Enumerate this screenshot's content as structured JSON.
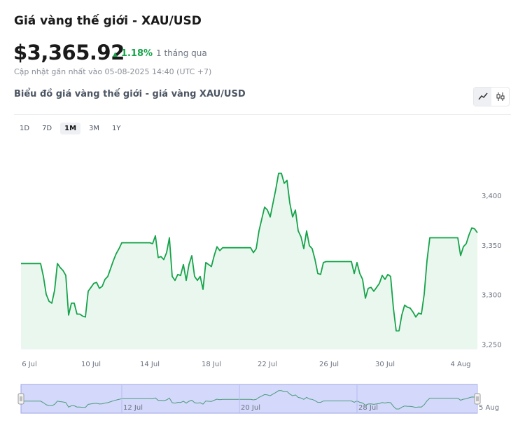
{
  "header": {
    "title": "Giá vàng thế giới - XAU/USD",
    "price": "$3,365.92",
    "change": "1.18%",
    "change_period": "1 tháng qua",
    "updated": "Cập nhật gần nhất vào 05-08-2025 14:40 (UTC +7)"
  },
  "chart_section": {
    "title": "Biểu đồ giá vàng thế giới - giá vàng XAU/USD",
    "range_buttons": [
      "1D",
      "7D",
      "1M",
      "3M",
      "1Y"
    ],
    "active_range": "1M"
  },
  "chart_data": {
    "type": "line",
    "categories": [
      null,
      null,
      null,
      "6 Jul",
      null,
      null,
      null,
      null,
      null,
      null,
      null,
      null,
      null,
      null,
      null,
      null,
      null,
      null,
      null,
      null,
      null,
      null,
      null,
      null,
      null,
      "10 Jul",
      null,
      null,
      null,
      null,
      null,
      null,
      null,
      null,
      null,
      null,
      null,
      null,
      null,
      null,
      null,
      null,
      null,
      null,
      null,
      null,
      "14 Jul",
      null,
      null,
      null,
      null,
      null,
      null,
      null,
      null,
      null,
      null,
      null,
      null,
      null,
      null,
      null,
      null,
      null,
      null,
      null,
      null,
      null,
      "18 Jul",
      null,
      null,
      null,
      null,
      null,
      null,
      null,
      null,
      null,
      null,
      null,
      null,
      null,
      null,
      null,
      null,
      null,
      null,
      null,
      "22 Jul",
      null,
      null,
      null,
      null,
      null,
      null,
      null,
      null,
      null,
      null,
      null,
      null,
      null,
      null,
      null,
      null,
      null,
      null,
      null,
      null,
      null,
      "26 Jul",
      null,
      null,
      null,
      null,
      null,
      null,
      null,
      null,
      null,
      null,
      null,
      null,
      null,
      null,
      null,
      null,
      null,
      null,
      null,
      "30 Jul",
      null,
      null,
      null,
      null,
      null,
      null,
      null,
      null,
      null,
      null,
      null,
      null,
      null,
      null,
      null,
      null,
      null,
      null,
      null,
      null,
      null,
      null,
      null,
      null,
      null,
      null,
      "4 Aug",
      null,
      null,
      null,
      null,
      null,
      null
    ],
    "navigator_labels": [
      null,
      null,
      null,
      null,
      null,
      null,
      null,
      null,
      null,
      null,
      null,
      null,
      null,
      null,
      null,
      null,
      null,
      null,
      null,
      null,
      null,
      null,
      null,
      null,
      null,
      null,
      null,
      null,
      null,
      null,
      null,
      null,
      null,
      null,
      null,
      null,
      "12 Jul",
      null,
      null,
      null,
      null,
      null,
      null,
      null,
      null,
      null,
      null,
      null,
      null,
      null,
      null,
      null,
      null,
      null,
      null,
      null,
      null,
      null,
      null,
      null,
      null,
      null,
      null,
      null,
      null,
      null,
      null,
      null,
      null,
      null,
      null,
      null,
      null,
      null,
      null,
      null,
      null,
      null,
      "20 Jul",
      null,
      null,
      null,
      null,
      null,
      null,
      null,
      null,
      null,
      null,
      null,
      null,
      null,
      null,
      null,
      null,
      null,
      null,
      null,
      null,
      null,
      null,
      null,
      null,
      null,
      null,
      null,
      null,
      null,
      null,
      null,
      null,
      null,
      null,
      null,
      null,
      null,
      null,
      null,
      null,
      null,
      "28 Jul",
      null,
      null,
      null,
      null,
      null,
      null,
      null,
      null,
      null,
      null,
      null,
      null,
      null,
      null,
      null,
      null,
      null,
      null,
      null,
      null,
      null,
      null,
      null,
      null,
      null,
      null,
      null,
      null,
      null,
      null,
      null,
      null,
      null,
      null,
      null,
      null,
      null,
      null,
      null,
      null,
      null,
      null,
      "5 Aug"
    ],
    "series": [
      {
        "color": "#16a34a",
        "values": [
          3332,
          3332,
          3332,
          3332,
          3332,
          3332,
          3332,
          3332,
          3319,
          3301,
          3294,
          3292,
          3305,
          3332,
          3328,
          3325,
          3320,
          3280,
          3292,
          3292,
          3281,
          3281,
          3279,
          3278,
          3304,
          3308,
          3312,
          3313,
          3307,
          3309,
          3316,
          3319,
          3327,
          3335,
          3342,
          3347,
          3353,
          3353,
          3353,
          3353,
          3353,
          3353,
          3353,
          3353,
          3353,
          3353,
          3353,
          3352,
          3360,
          3338,
          3339,
          3336,
          3343,
          3358,
          3319,
          3315,
          3321,
          3320,
          3331,
          3315,
          3331,
          3340,
          3319,
          3315,
          3319,
          3306,
          3333,
          3331,
          3329,
          3340,
          3349,
          3345,
          3348,
          3348,
          3348,
          3348,
          3348,
          3348,
          3348,
          3348,
          3348,
          3348,
          3348,
          3343,
          3347,
          3365,
          3377,
          3389,
          3386,
          3379,
          3393,
          3407,
          3423,
          3423,
          3413,
          3416,
          3393,
          3379,
          3386,
          3365,
          3359,
          3347,
          3365,
          3350,
          3347,
          3336,
          3322,
          3321,
          3333,
          3334,
          3334,
          3334,
          3334,
          3334,
          3334,
          3334,
          3334,
          3334,
          3334,
          3322,
          3333,
          3322,
          3316,
          3297,
          3307,
          3308,
          3304,
          3308,
          3312,
          3320,
          3316,
          3321,
          3319,
          3287,
          3264,
          3264,
          3280,
          3290,
          3288,
          3287,
          3283,
          3278,
          3282,
          3281,
          3301,
          3335,
          3358,
          3358,
          3358,
          3358,
          3358,
          3358,
          3358,
          3358,
          3358,
          3358,
          3358,
          3340,
          3349,
          3352,
          3361,
          3368,
          3367,
          3363
        ]
      }
    ],
    "ylim": [
      3246,
      3446
    ],
    "yticks": [
      {
        "value": 3250,
        "label": "3,250"
      },
      {
        "value": 3300,
        "label": "3,300"
      },
      {
        "value": 3350,
        "label": "3,350"
      },
      {
        "value": 3400,
        "label": "3,400"
      }
    ],
    "grid": false
  }
}
